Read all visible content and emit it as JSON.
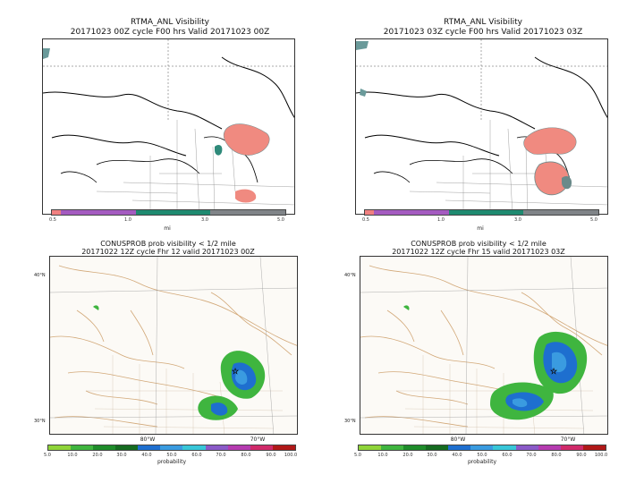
{
  "panels": [
    {
      "title_line1": "RTMA_ANL Visibility",
      "title_line2": "20171023 00Z cycle F00 hrs Valid 20171023 00Z"
    },
    {
      "title_line1": "RTMA_ANL Visibility",
      "title_line2": "20171023 03Z cycle F00 hrs Valid 20171023 03Z"
    },
    {
      "title_line1": "CONUSPROB prob visibility < 1/2 mile",
      "title_line2": "20171022 12Z cycle Fhr 12 valid 20171023 00Z"
    },
    {
      "title_line1": "CONUSPROB prob visibility < 1/2 mile",
      "title_line2": "20171022 12Z cycle Fhr 15 valid 20171023 03Z"
    }
  ],
  "visibility_colorbar": {
    "ticks": [
      "0.5",
      "1.0",
      "3.0",
      "5.0"
    ],
    "unit": "mi",
    "colors": [
      "#f08080",
      "#a45bc0",
      "#1f8a70",
      "#808488"
    ]
  },
  "prob_colorbar": {
    "ticks": [
      "5.0",
      "10.0",
      "20.0",
      "30.0",
      "40.0",
      "50.0",
      "60.0",
      "70.0",
      "80.0",
      "90.0",
      "100.0"
    ],
    "unit": "probability",
    "colors": [
      "#8fd43a",
      "#3fb53f",
      "#1e8c2a",
      "#156b20",
      "#1e6fcf",
      "#3a9be0",
      "#38c6d8",
      "#8a5ac8",
      "#b53bb0",
      "#d02a6a",
      "#b01818"
    ]
  },
  "lat_labels": [
    "30°N",
    "40°N"
  ],
  "lon_labels": [
    "80°W",
    "70°W"
  ]
}
